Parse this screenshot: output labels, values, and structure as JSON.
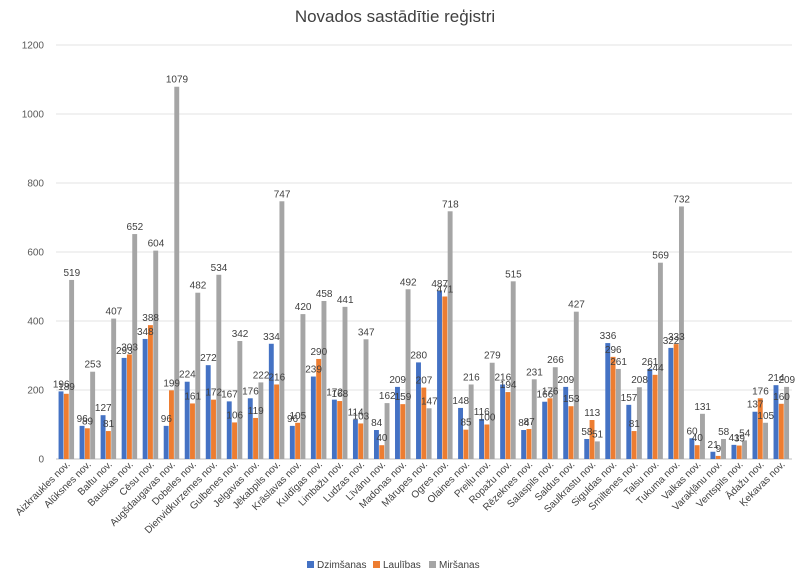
{
  "chart_data": {
    "type": "bar",
    "title": "Novados sastādītie reģistri",
    "xlabel": "",
    "ylabel": "",
    "ylim": [
      0,
      1200
    ],
    "yticks": [
      0,
      200,
      400,
      600,
      800,
      1000,
      1200
    ],
    "grid": true,
    "legend_position": "bottom",
    "colors": [
      "#4472C4",
      "#ED7D31",
      "#A5A5A5"
    ],
    "categories": [
      "Aizkraukles nov.",
      "Alūksnes nov.",
      "Baltu nov.",
      "Bauskas nov.",
      "Cēsu nov.",
      "Augšdaugavas nov.",
      "Dobeles nov.",
      "Dienvidkurzemes nov.",
      "Gulbenes nov.",
      "Jelgavas nov.",
      "Jēkabpils nov.",
      "Krāslavas nov.",
      "Kuldīgas nov.",
      "Limbažu nov.",
      "Ludzas nov.",
      "Līvānu nov.",
      "Madonas nov.",
      "Mārupes nov.",
      "Ogres nov.",
      "Olaines nov.",
      "Preiļu nov.",
      "Ropažu nov.",
      "Rēzeknes nov.",
      "Salaspils nov.",
      "Saldus nov.",
      "Saulkrastu nov.",
      "Siguldas nov.",
      "Smiltenes nov.",
      "Talsu nov.",
      "Tukuma nov.",
      "Valkas nov.",
      "Varakļānu nov.",
      "Ventspils nov.",
      "Ādažu nov.",
      "Ķekavas nov."
    ],
    "series": [
      {
        "name": "Dzimšanas",
        "values": [
          196,
          96,
          127,
          293,
          348,
          96,
          224,
          272,
          167,
          176,
          334,
          96,
          239,
          172,
          114,
          84,
          209,
          280,
          487,
          148,
          116,
          216,
          84,
          166,
          209,
          58,
          336,
          157,
          261,
          322,
          60,
          21,
          41,
          137,
          214
        ]
      },
      {
        "name": "Laulības",
        "values": [
          189,
          89,
          81,
          303,
          388,
          199,
          161,
          172,
          106,
          119,
          216,
          105,
          290,
          168,
          103,
          40,
          159,
          207,
          471,
          85,
          100,
          194,
          87,
          176,
          153,
          113,
          296,
          81,
          244,
          333,
          40,
          9,
          39,
          176,
          160
        ]
      },
      {
        "name": "Miršanas",
        "values": [
          519,
          253,
          407,
          652,
          604,
          1079,
          482,
          534,
          342,
          222,
          747,
          420,
          458,
          441,
          347,
          162,
          492,
          147,
          718,
          216,
          279,
          515,
          231,
          266,
          427,
          51,
          261,
          208,
          569,
          732,
          131,
          58,
          54,
          105,
          209
        ]
      }
    ]
  }
}
